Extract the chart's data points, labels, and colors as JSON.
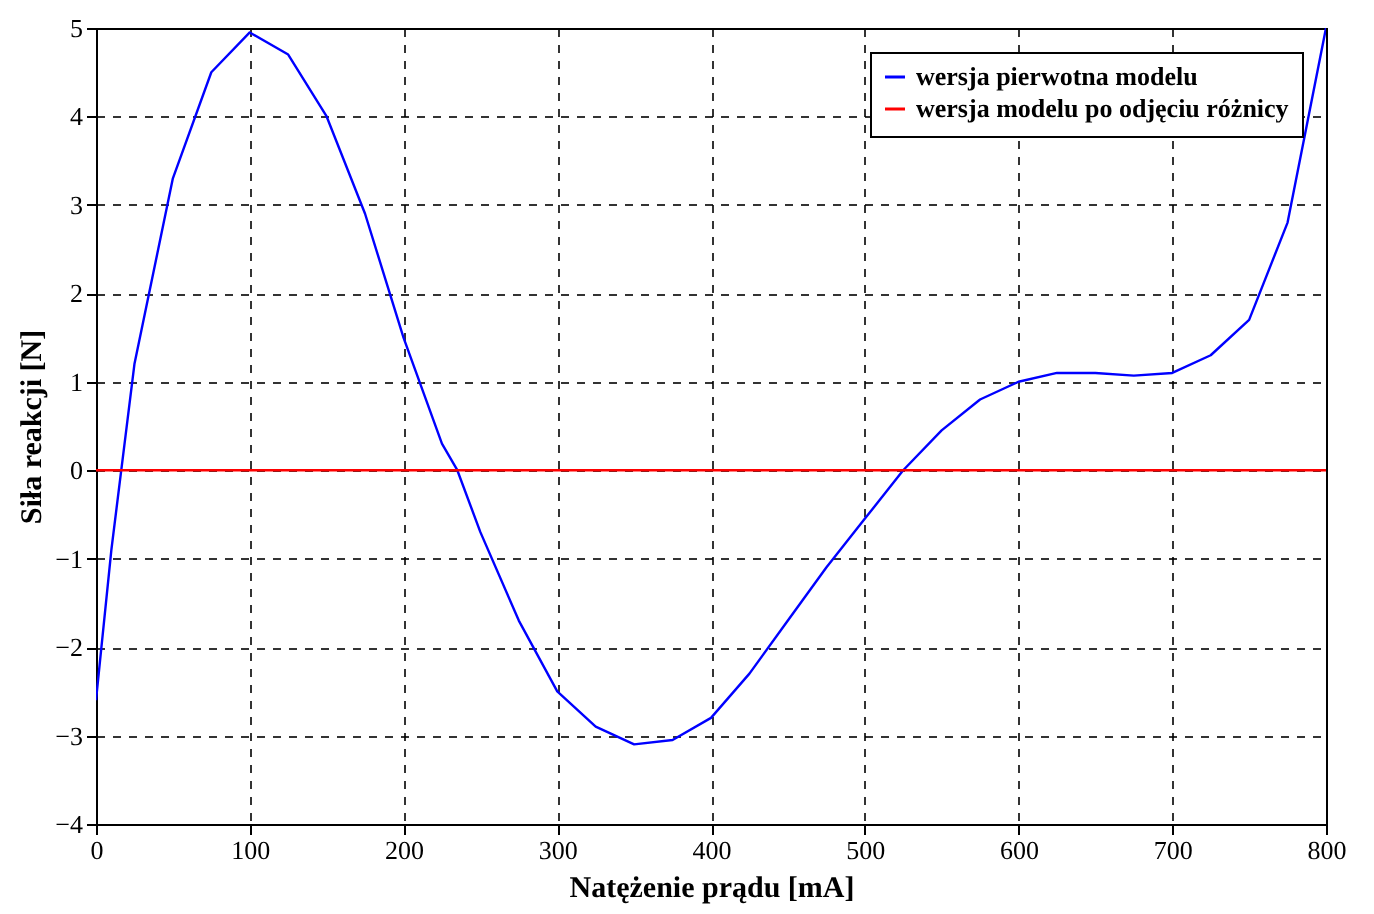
{
  "chart_data": {
    "type": "line",
    "xlabel": "Natężenie prądu [mA]",
    "ylabel": "Siła reakcji [N]",
    "xlim": [
      0,
      800
    ],
    "xticks": [
      0,
      100,
      200,
      300,
      400,
      500,
      600,
      700,
      800
    ],
    "ylim": [
      -4,
      5
    ],
    "yticks": [
      -4,
      -3,
      -2,
      -1,
      0,
      1,
      2,
      3,
      4,
      5
    ],
    "grid": true,
    "legend": "top right",
    "marker": "none",
    "line_style": "solid",
    "series": [
      {
        "name": "wersja pierwotna modelu",
        "color": "#0000ff",
        "x": [
          0,
          10,
          25,
          50,
          75,
          100,
          125,
          150,
          175,
          200,
          225,
          235,
          250,
          275,
          300,
          325,
          350,
          375,
          400,
          425,
          450,
          475,
          500,
          525,
          550,
          575,
          600,
          625,
          650,
          675,
          700,
          725,
          750,
          775,
          800
        ],
        "values": [
          -2.6,
          -0.9,
          1.2,
          3.3,
          4.5,
          4.95,
          4.7,
          4.0,
          2.9,
          1.5,
          0.3,
          0,
          -0.7,
          -1.7,
          -2.5,
          -2.9,
          -3.1,
          -3.05,
          -2.8,
          -2.3,
          -1.7,
          -1.1,
          -0.55,
          0,
          0.45,
          0.8,
          1.0,
          1.1,
          1.1,
          1.07,
          1.1,
          1.3,
          1.7,
          2.8,
          5.0
        ]
      },
      {
        "name": "wersja modelu po odjęciu różnicy",
        "color": "#ff0000",
        "x": [
          0,
          800
        ],
        "values": [
          0,
          0
        ]
      }
    ]
  }
}
